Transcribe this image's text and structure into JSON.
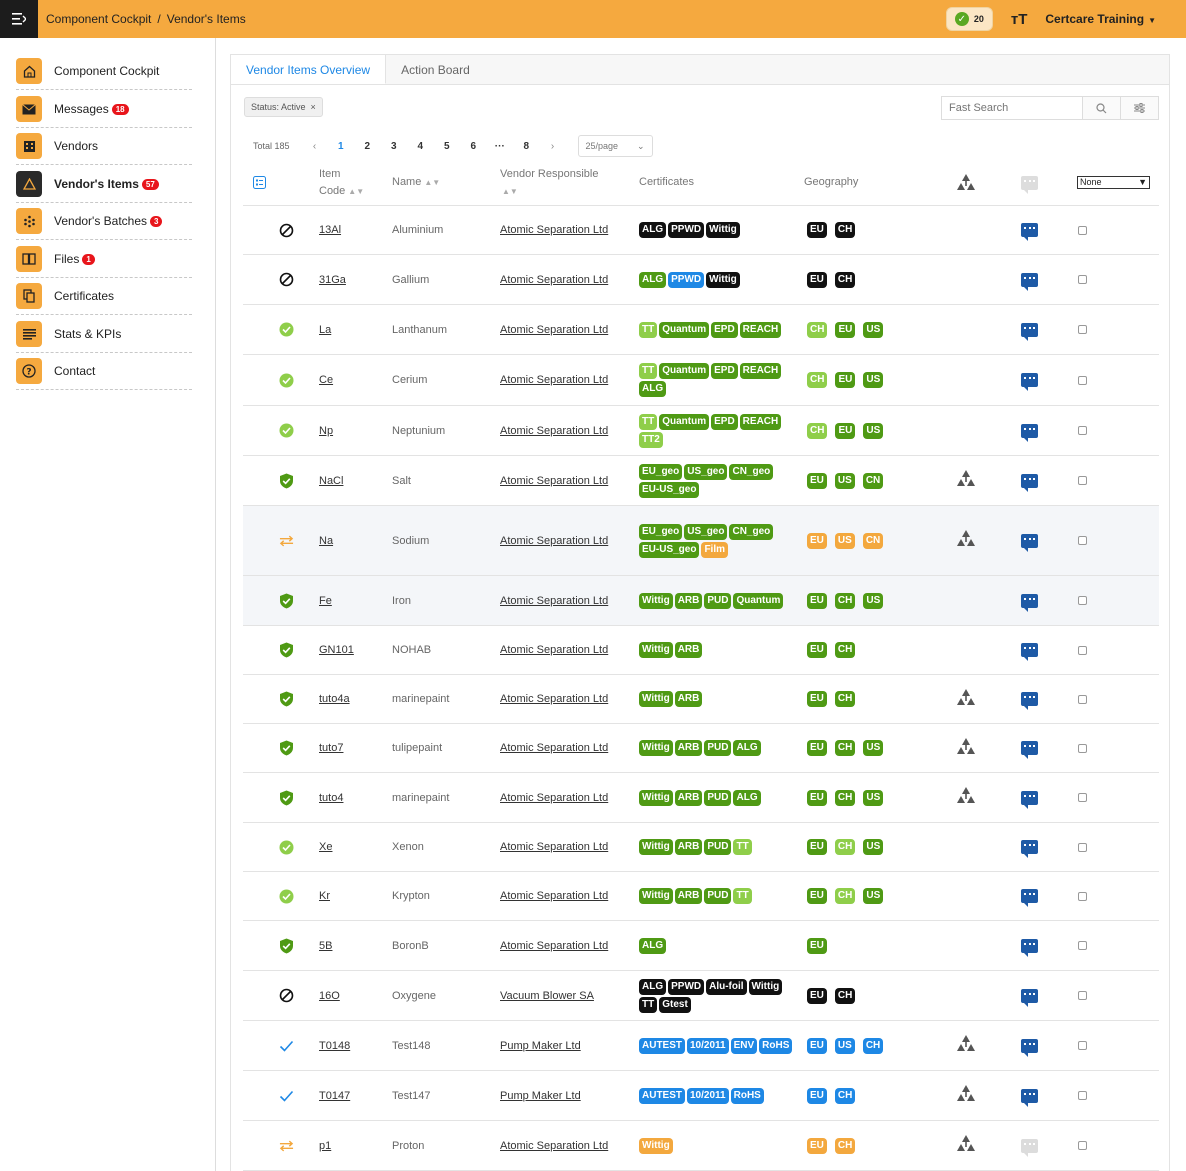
{
  "topbar": {
    "breadcrumb": [
      "Component Cockpit",
      "/",
      "Vendor's Items"
    ],
    "notification_count": "20",
    "user": "Certcare Training"
  },
  "sidebar": {
    "items": [
      {
        "label": "Component Cockpit",
        "icon": "home-icon",
        "badge": ""
      },
      {
        "label": "Messages",
        "icon": "envelope-icon",
        "badge": "18"
      },
      {
        "label": "Vendors",
        "icon": "building-icon",
        "badge": ""
      },
      {
        "label": "Vendor's Items",
        "icon": "warning-icon",
        "badge": "57",
        "active": true
      },
      {
        "label": "Vendor's Batches",
        "icon": "dots-grid-icon",
        "badge": "3"
      },
      {
        "label": "Files",
        "icon": "book-icon",
        "badge": "1"
      },
      {
        "label": "Certificates",
        "icon": "copy-icon",
        "badge": ""
      },
      {
        "label": "Stats & KPIs",
        "icon": "list-icon",
        "badge": ""
      },
      {
        "label": "Contact",
        "icon": "question-icon",
        "badge": ""
      }
    ]
  },
  "tabs": [
    "Vendor Items Overview",
    "Action Board"
  ],
  "filter_chip": "Status: Active",
  "search": {
    "placeholder": "Fast Search"
  },
  "pager": {
    "total": "Total 185",
    "pages": [
      "1",
      "2",
      "3",
      "4",
      "5",
      "6",
      "···",
      "8"
    ],
    "current": "1",
    "page_size": "25/page"
  },
  "table": {
    "headers": {
      "item_code_1": "Item",
      "item_code_2": "Code",
      "name": "Name",
      "vendor": "Vendor Responsible",
      "certificates": "Certificates",
      "geography": "Geography",
      "select": "None"
    },
    "colors": {
      "black": "#111111",
      "green": "#4f9a14",
      "light": "#8fce4a",
      "blue": "#1e88e5",
      "orange": "#f3a83e"
    },
    "rows": [
      {
        "status": "blocked",
        "code": "13Al",
        "name": "Aluminium",
        "vendor": "Atomic Separation Ltd",
        "certs": [
          [
            "ALG",
            "black"
          ],
          [
            "PPWD",
            "black"
          ],
          [
            "Wittig",
            "black"
          ]
        ],
        "geo": [
          [
            "EU",
            "black"
          ],
          [
            "CH",
            "black"
          ]
        ],
        "tree": false,
        "comment": "blue"
      },
      {
        "status": "blocked",
        "code": "31Ga",
        "name": "Gallium",
        "vendor": "Atomic Separation Ltd",
        "certs": [
          [
            "ALG",
            "green"
          ],
          [
            "PPWD",
            "blue"
          ],
          [
            "Wittig",
            "black"
          ]
        ],
        "geo": [
          [
            "EU",
            "black"
          ],
          [
            "CH",
            "black"
          ]
        ],
        "tree": false,
        "comment": "blue"
      },
      {
        "status": "ok",
        "code": "La",
        "name": "Lanthanum",
        "vendor": "Atomic Separation Ltd",
        "certs": [
          [
            "TT",
            "light"
          ],
          [
            "Quantum",
            "green"
          ],
          [
            "EPD",
            "green"
          ],
          [
            "REACH",
            "green"
          ]
        ],
        "geo": [
          [
            "CH",
            "light"
          ],
          [
            "EU",
            "green"
          ],
          [
            "US",
            "green"
          ]
        ],
        "tree": false,
        "comment": "blue"
      },
      {
        "status": "ok",
        "code": "Ce",
        "name": "Cerium",
        "vendor": "Atomic Separation Ltd",
        "certs": [
          [
            "TT",
            "light"
          ],
          [
            "Quantum",
            "green"
          ],
          [
            "EPD",
            "green"
          ],
          [
            "REACH",
            "green"
          ],
          [
            "ALG",
            "green"
          ]
        ],
        "geo": [
          [
            "CH",
            "light"
          ],
          [
            "EU",
            "green"
          ],
          [
            "US",
            "green"
          ]
        ],
        "tree": false,
        "comment": "blue"
      },
      {
        "status": "ok",
        "code": "Np",
        "name": "Neptunium",
        "vendor": "Atomic Separation Ltd",
        "certs": [
          [
            "TT",
            "light"
          ],
          [
            "Quantum",
            "green"
          ],
          [
            "EPD",
            "green"
          ],
          [
            "REACH",
            "green"
          ],
          [
            "TT2",
            "light"
          ]
        ],
        "geo": [
          [
            "CH",
            "light"
          ],
          [
            "EU",
            "green"
          ],
          [
            "US",
            "green"
          ]
        ],
        "tree": false,
        "comment": "blue"
      },
      {
        "status": "shield",
        "code": "NaCl",
        "name": "Salt",
        "vendor": "Atomic Separation Ltd",
        "certs": [
          [
            "EU_geo",
            "green"
          ],
          [
            "US_geo",
            "green"
          ],
          [
            "CN_geo",
            "green"
          ],
          [
            "EU-US_geo",
            "green"
          ]
        ],
        "geo": [
          [
            "EU",
            "green"
          ],
          [
            "US",
            "green"
          ],
          [
            "CN",
            "green"
          ]
        ],
        "tree": true,
        "comment": "blue"
      },
      {
        "status": "transfer",
        "code": "Na",
        "name": "Sodium",
        "vendor": "Atomic Separation Ltd",
        "certs": [
          [
            "EU_geo",
            "green"
          ],
          [
            "US_geo",
            "green"
          ],
          [
            "CN_geo",
            "green"
          ],
          [
            "EU-US_geo",
            "green"
          ],
          [
            "Film",
            "orange"
          ]
        ],
        "geo": [
          [
            "EU",
            "orange"
          ],
          [
            "US",
            "orange"
          ],
          [
            "CN",
            "orange"
          ]
        ],
        "tree": true,
        "comment": "blue"
      },
      {
        "status": "shield",
        "code": "Fe",
        "name": "Iron",
        "vendor": "Atomic Separation Ltd",
        "certs": [
          [
            "Wittig",
            "green"
          ],
          [
            "ARB",
            "green"
          ],
          [
            "PUD",
            "green"
          ],
          [
            "Quantum",
            "green"
          ]
        ],
        "geo": [
          [
            "EU",
            "green"
          ],
          [
            "CH",
            "green"
          ],
          [
            "US",
            "green"
          ]
        ],
        "tree": false,
        "comment": "blue"
      },
      {
        "status": "shield",
        "code": "GN101",
        "name": "NOHAB",
        "vendor": "Atomic Separation Ltd",
        "certs": [
          [
            "Wittig",
            "green"
          ],
          [
            "ARB",
            "green"
          ]
        ],
        "geo": [
          [
            "EU",
            "green"
          ],
          [
            "CH",
            "green"
          ]
        ],
        "tree": false,
        "comment": "blue"
      },
      {
        "status": "shield",
        "code": "tuto4a",
        "name": "marinepaint",
        "vendor": "Atomic Separation Ltd",
        "certs": [
          [
            "Wittig",
            "green"
          ],
          [
            "ARB",
            "green"
          ]
        ],
        "geo": [
          [
            "EU",
            "green"
          ],
          [
            "CH",
            "green"
          ]
        ],
        "tree": true,
        "comment": "blue"
      },
      {
        "status": "shield",
        "code": "tuto7",
        "name": "tulipepaint",
        "vendor": "Atomic Separation Ltd",
        "certs": [
          [
            "Wittig",
            "green"
          ],
          [
            "ARB",
            "green"
          ],
          [
            "PUD",
            "green"
          ],
          [
            "ALG",
            "green"
          ]
        ],
        "geo": [
          [
            "EU",
            "green"
          ],
          [
            "CH",
            "green"
          ],
          [
            "US",
            "green"
          ]
        ],
        "tree": true,
        "comment": "blue"
      },
      {
        "status": "shield",
        "code": "tuto4",
        "name": "marinepaint",
        "vendor": "Atomic Separation Ltd",
        "certs": [
          [
            "Wittig",
            "green"
          ],
          [
            "ARB",
            "green"
          ],
          [
            "PUD",
            "green"
          ],
          [
            "ALG",
            "green"
          ]
        ],
        "geo": [
          [
            "EU",
            "green"
          ],
          [
            "CH",
            "green"
          ],
          [
            "US",
            "green"
          ]
        ],
        "tree": true,
        "comment": "blue"
      },
      {
        "status": "ok",
        "code": "Xe",
        "name": "Xenon",
        "vendor": "Atomic Separation Ltd",
        "certs": [
          [
            "Wittig",
            "green"
          ],
          [
            "ARB",
            "green"
          ],
          [
            "PUD",
            "green"
          ],
          [
            "TT",
            "light"
          ]
        ],
        "geo": [
          [
            "EU",
            "green"
          ],
          [
            "CH",
            "light"
          ],
          [
            "US",
            "green"
          ]
        ],
        "tree": false,
        "comment": "blue"
      },
      {
        "status": "ok",
        "code": "Kr",
        "name": "Krypton",
        "vendor": "Atomic Separation Ltd",
        "certs": [
          [
            "Wittig",
            "green"
          ],
          [
            "ARB",
            "green"
          ],
          [
            "PUD",
            "green"
          ],
          [
            "TT",
            "light"
          ]
        ],
        "geo": [
          [
            "EU",
            "green"
          ],
          [
            "CH",
            "light"
          ],
          [
            "US",
            "green"
          ]
        ],
        "tree": false,
        "comment": "blue"
      },
      {
        "status": "shield",
        "code": "5B",
        "name": "BoronB",
        "vendor": "Atomic Separation Ltd",
        "certs": [
          [
            "ALG",
            "green"
          ]
        ],
        "geo": [
          [
            "EU",
            "green"
          ]
        ],
        "tree": false,
        "comment": "blue"
      },
      {
        "status": "blocked",
        "code": "16O",
        "name": "Oxygene",
        "vendor": "Vacuum Blower SA",
        "certs": [
          [
            "ALG",
            "black"
          ],
          [
            "PPWD",
            "black"
          ],
          [
            "Alu-foil",
            "black"
          ],
          [
            "Wittig",
            "black"
          ],
          [
            "TT",
            "black"
          ],
          [
            "Gtest",
            "black"
          ]
        ],
        "geo": [
          [
            "EU",
            "black"
          ],
          [
            "CH",
            "black"
          ]
        ],
        "tree": false,
        "comment": "blue"
      },
      {
        "status": "check",
        "code": "T0148",
        "name": "Test148",
        "vendor": "Pump Maker Ltd",
        "certs": [
          [
            "AUTEST",
            "blue"
          ],
          [
            "10/2011",
            "blue"
          ],
          [
            "ENV",
            "blue"
          ],
          [
            "RoHS",
            "blue"
          ]
        ],
        "geo": [
          [
            "EU",
            "blue"
          ],
          [
            "US",
            "blue"
          ],
          [
            "CH",
            "blue"
          ]
        ],
        "tree": true,
        "comment": "blue"
      },
      {
        "status": "check",
        "code": "T0147",
        "name": "Test147",
        "vendor": "Pump Maker Ltd",
        "certs": [
          [
            "AUTEST",
            "blue"
          ],
          [
            "10/2011",
            "blue"
          ],
          [
            "RoHS",
            "blue"
          ]
        ],
        "geo": [
          [
            "EU",
            "blue"
          ],
          [
            "CH",
            "blue"
          ]
        ],
        "tree": true,
        "comment": "blue"
      },
      {
        "status": "transfer",
        "code": "p1",
        "name": "Proton",
        "vendor": "Atomic Separation Ltd",
        "certs": [
          [
            "Wittig",
            "orange"
          ]
        ],
        "geo": [
          [
            "EU",
            "orange"
          ],
          [
            "CH",
            "orange"
          ]
        ],
        "tree": true,
        "comment": "grey"
      }
    ]
  }
}
